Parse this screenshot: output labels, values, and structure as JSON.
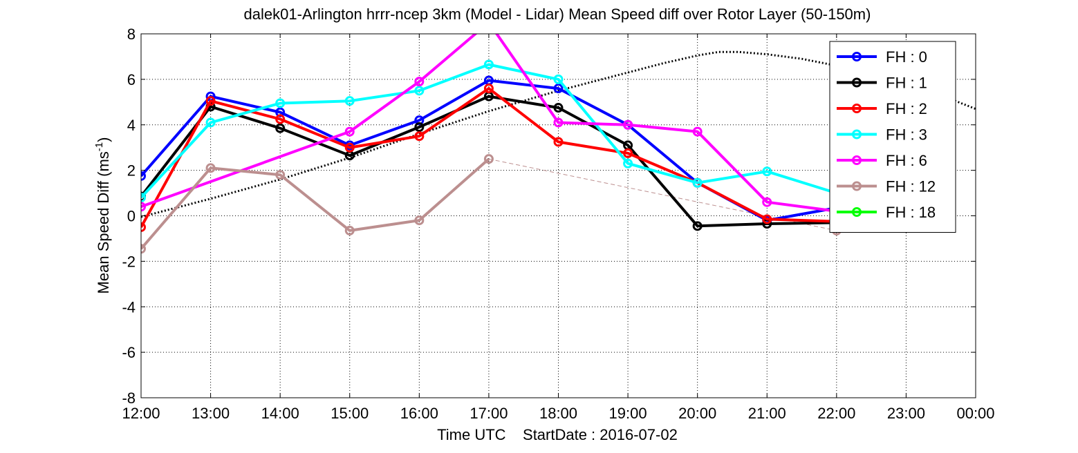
{
  "chart_data": {
    "type": "line",
    "title": "dalek01-Arlington hrrr-ncep 3km (Model - Lidar) Mean Speed diff over Rotor Layer (50-150m)",
    "xlabel": "Time UTC    StartDate : 2016-07-02",
    "ylabel_main": "Mean Speed Diff (ms",
    "ylabel_sup": "-1",
    "ylabel_close": ")",
    "x_tick_labels": [
      "12:00",
      "13:00",
      "14:00",
      "15:00",
      "16:00",
      "17:00",
      "18:00",
      "19:00",
      "20:00",
      "21:00",
      "22:00",
      "23:00",
      "00:00"
    ],
    "y_tick_labels": [
      "-8",
      "-6",
      "-4",
      "-2",
      "0",
      "2",
      "4",
      "6",
      "8"
    ],
    "xlim": [
      0,
      12
    ],
    "ylim": [
      -8,
      8
    ],
    "grid": true,
    "legend_position": "top-right",
    "series": [
      {
        "name": "FH : 0",
        "color": "#0000ff",
        "x": [
          0,
          1,
          2,
          3,
          4,
          5,
          6,
          7,
          8,
          9,
          10
        ],
        "values": [
          1.75,
          5.25,
          4.55,
          3.1,
          4.2,
          5.95,
          5.6,
          4.0,
          1.45,
          -0.2,
          0.35
        ]
      },
      {
        "name": "FH : 1",
        "color": "#000000",
        "x": [
          0,
          1,
          2,
          3,
          4,
          5,
          6,
          7,
          8,
          9,
          10
        ],
        "values": [
          0.85,
          4.8,
          3.85,
          2.65,
          3.9,
          5.25,
          4.75,
          3.1,
          -0.45,
          -0.35,
          -0.3
        ]
      },
      {
        "name": "FH : 2",
        "color": "#ff0000",
        "x": [
          0,
          1,
          2,
          3,
          4,
          5,
          6,
          7,
          8,
          9,
          10
        ],
        "values": [
          -0.5,
          5.05,
          4.25,
          3.0,
          3.5,
          5.6,
          3.25,
          2.75,
          1.45,
          -0.15,
          -0.25
        ]
      },
      {
        "name": "FH : 3",
        "color": "#00ffff",
        "x": [
          0,
          1,
          2,
          3,
          4,
          5,
          6,
          7,
          8,
          9,
          10
        ],
        "values": [
          0.8,
          4.1,
          4.95,
          5.05,
          5.5,
          6.65,
          6.0,
          2.3,
          1.45,
          1.95,
          1.0
        ]
      },
      {
        "name": "FH : 6",
        "color": "#ff00ff",
        "x": [
          0,
          3,
          4,
          5,
          6,
          7,
          8,
          9,
          10
        ],
        "values": [
          0.4,
          3.7,
          5.9,
          8.5,
          4.1,
          4.0,
          3.7,
          0.6,
          0.2
        ]
      },
      {
        "name": "FH : 12",
        "color": "#bc8f8f",
        "x": [
          0,
          1,
          2,
          3,
          4,
          5
        ],
        "values": [
          -1.45,
          2.1,
          1.8,
          -0.65,
          -0.2,
          2.5
        ]
      },
      {
        "name": "FH : 18",
        "color": "#00ff00",
        "x": [],
        "values": []
      }
    ],
    "dashed_lines": [
      {
        "color": "#ff00ff",
        "x": [
          0,
          3
        ],
        "values": [
          0.4,
          3.7
        ]
      },
      {
        "color": "#bc8f8f",
        "x": [
          5,
          10,
          11
        ],
        "values": [
          2.5,
          -0.65,
          -0.45
        ]
      }
    ],
    "late_points": [
      {
        "color": "#bc8f8f",
        "x": [
          10,
          11
        ],
        "values": [
          -0.65,
          -0.45
        ]
      }
    ],
    "reference_curve": {
      "color": "#000000",
      "style": "dotted",
      "x": [
        0,
        1,
        2,
        3,
        4,
        5,
        6,
        7,
        7.5,
        8,
        8.3,
        8.6,
        9,
        9.5,
        10,
        10.5,
        11,
        11.5,
        12
      ],
      "values": [
        -0.05,
        0.75,
        1.6,
        2.55,
        3.6,
        4.6,
        5.5,
        6.3,
        6.7,
        7.05,
        7.2,
        7.2,
        7.1,
        6.9,
        6.6,
        6.25,
        5.8,
        5.3,
        4.7
      ]
    }
  }
}
